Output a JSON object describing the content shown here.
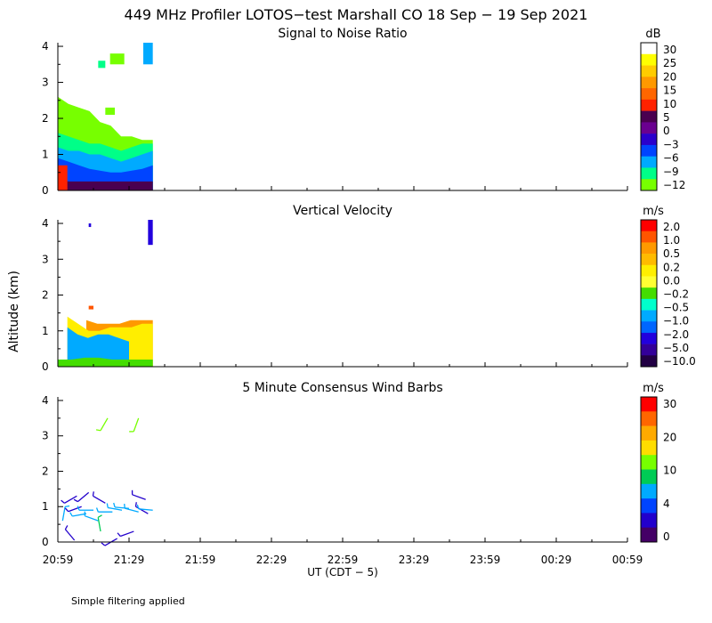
{
  "title": "449 MHz Profiler LOTOS−test Marshall CO 18 Sep − 19 Sep 2021",
  "footnote": "Simple filtering applied",
  "chart_data": [
    {
      "type": "heatmap",
      "title": "Signal to Noise Ratio",
      "ylabel": "Altitude (km)",
      "ylim": [
        0,
        4.1
      ],
      "yticks": [
        "0",
        "1",
        "2",
        "3",
        "4"
      ],
      "colorbar": {
        "unit": "dB",
        "labels": [
          "30",
          "25",
          "20",
          "15",
          "10",
          "5",
          "0",
          "−3",
          "−6",
          "−9",
          "−12"
        ],
        "colors": [
          "#ffffff",
          "#ffff00",
          "#ffcc00",
          "#ff9900",
          "#ff6600",
          "#ff2200",
          "#4a0050",
          "#6a0090",
          "#2a00cc",
          "#0044ff",
          "#00aaff",
          "#00ff88",
          "#77ff00"
        ]
      },
      "layers": [
        {
          "name": "low-snr-envelope",
          "color": "#77ff00",
          "start_min": 0,
          "end_min": 40,
          "profile": [
            2.6,
            2.4,
            2.3,
            2.2,
            1.9,
            1.8,
            1.5,
            1.5,
            1.4,
            1.4
          ]
        },
        {
          "name": "mid-snr",
          "color": "#00ff88",
          "start_min": 0,
          "end_min": 40,
          "profile": [
            1.6,
            1.5,
            1.4,
            1.3,
            1.3,
            1.2,
            1.1,
            1.2,
            1.3,
            1.3
          ]
        },
        {
          "name": "cyan",
          "color": "#00aaff",
          "start_min": 0,
          "end_min": 40,
          "profile": [
            1.2,
            1.1,
            1.1,
            1.0,
            1.0,
            0.9,
            0.8,
            0.9,
            1.0,
            1.1
          ]
        },
        {
          "name": "blue",
          "color": "#0044ff",
          "start_min": 0,
          "end_min": 40,
          "profile": [
            0.9,
            0.8,
            0.7,
            0.6,
            0.55,
            0.5,
            0.5,
            0.55,
            0.6,
            0.7
          ]
        },
        {
          "name": "purple",
          "color": "#4a0050",
          "start_min": 0,
          "end_min": 40,
          "profile": [
            0.3,
            0.25,
            0.25,
            0.25,
            0.25,
            0.25,
            0.25,
            0.25,
            0.25,
            0.25
          ]
        },
        {
          "name": "red-surface",
          "color": "#ff2200",
          "start_min": 0,
          "end_min": 4,
          "profile": [
            0.7,
            0.7
          ]
        }
      ],
      "top_patches": [
        {
          "color": "#00ff88",
          "start_min": 17,
          "end_min": 20,
          "bottom": 3.4,
          "top": 3.6
        },
        {
          "color": "#77ff00",
          "start_min": 22,
          "end_min": 28,
          "bottom": 3.5,
          "top": 3.8
        },
        {
          "color": "#00aaff",
          "start_min": 36,
          "end_min": 40,
          "bottom": 3.5,
          "top": 4.1
        },
        {
          "color": "#77ff00",
          "start_min": 20,
          "end_min": 24,
          "bottom": 2.1,
          "top": 2.3
        }
      ]
    },
    {
      "type": "heatmap",
      "title": "Vertical Velocity",
      "ylabel": "Altitude (km)",
      "ylim": [
        0,
        4.1
      ],
      "yticks": [
        "0",
        "1",
        "2",
        "3",
        "4"
      ],
      "colorbar": {
        "unit": "m/s",
        "labels": [
          "2.0",
          "1.0",
          "0.5",
          "0.2",
          "0.0",
          "−0.2",
          "−0.5",
          "−1.0",
          "−2.0",
          "−5.0",
          "−10.0"
        ],
        "colors": [
          "#ff0000",
          "#ff5500",
          "#ff9900",
          "#ffbb00",
          "#ffee00",
          "#ffff33",
          "#44dd00",
          "#00ffcc",
          "#00aaff",
          "#0066ff",
          "#2200dd",
          "#330099",
          "#220044"
        ]
      },
      "layers": [
        {
          "name": "positive",
          "color": "#ff9900",
          "start_min": 12,
          "end_min": 40,
          "profile": [
            1.3,
            1.2,
            1.2,
            1.2,
            1.3,
            1.3,
            1.3
          ]
        },
        {
          "name": "mixed",
          "color": "#ffee00",
          "start_min": 4,
          "end_min": 40,
          "profile": [
            1.4,
            1.2,
            1.0,
            1.0,
            1.1,
            1.1,
            1.1,
            1.2,
            1.2
          ]
        },
        {
          "name": "negative",
          "color": "#00aaff",
          "start_min": 4,
          "end_min": 30,
          "profile": [
            1.1,
            0.9,
            0.8,
            0.9,
            0.9,
            0.8,
            0.7
          ]
        },
        {
          "name": "near-surface",
          "color": "#44dd00",
          "start_min": 0,
          "end_min": 40,
          "profile": [
            0.2,
            0.2,
            0.25,
            0.25,
            0.2,
            0.2,
            0.2,
            0.2
          ]
        }
      ],
      "top_patches": [
        {
          "color": "#2200dd",
          "start_min": 38,
          "end_min": 40,
          "bottom": 3.4,
          "top": 4.1
        },
        {
          "color": "#2200dd",
          "start_min": 13,
          "end_min": 14,
          "bottom": 3.9,
          "top": 4.0
        },
        {
          "color": "#ff5500",
          "start_min": 13,
          "end_min": 15,
          "bottom": 1.6,
          "top": 1.7
        }
      ]
    },
    {
      "type": "wind_barbs",
      "title": "5 Minute Consensus Wind Barbs",
      "ylabel": "Altitude (km)",
      "ylim": [
        0,
        4.1
      ],
      "yticks": [
        "0",
        "1",
        "2",
        "3",
        "4"
      ],
      "colorbar": {
        "unit": "m/s",
        "labels": [
          "30",
          "20",
          "10",
          "4",
          "0"
        ],
        "colors": [
          "#ff0000",
          "#ff6600",
          "#ffaa00",
          "#ffdd00",
          "#77ff00",
          "#00cc55",
          "#00aaff",
          "#0044ff",
          "#2200cc",
          "#440066"
        ]
      },
      "barbs": [
        {
          "t_min": 2,
          "alt_km": 0.6,
          "dir": 10,
          "color": "#00aaff"
        },
        {
          "t_min": 7,
          "alt_km": 0.05,
          "dir": 320,
          "color": "#2200cc"
        },
        {
          "t_min": 8,
          "alt_km": 1.3,
          "dir": 240,
          "color": "#2200cc"
        },
        {
          "t_min": 10,
          "alt_km": 1.0,
          "dir": 250,
          "color": "#2200cc"
        },
        {
          "t_min": 12,
          "alt_km": 0.8,
          "dir": 260,
          "color": "#00aaff"
        },
        {
          "t_min": 13,
          "alt_km": 1.4,
          "dir": 230,
          "color": "#2200cc"
        },
        {
          "t_min": 15,
          "alt_km": 0.9,
          "dir": 270,
          "color": "#00aaff"
        },
        {
          "t_min": 17,
          "alt_km": 0.6,
          "dir": 290,
          "color": "#00aaff"
        },
        {
          "t_min": 18,
          "alt_km": 0.3,
          "dir": 350,
          "color": "#00cc55"
        },
        {
          "t_min": 20,
          "alt_km": 1.1,
          "dir": 300,
          "color": "#2200cc"
        },
        {
          "t_min": 21,
          "alt_km": 3.5,
          "dir": 210,
          "color": "#77ff00"
        },
        {
          "t_min": 23,
          "alt_km": 0.85,
          "dir": 270,
          "color": "#00aaff"
        },
        {
          "t_min": 25,
          "alt_km": 0.1,
          "dir": 240,
          "color": "#2200cc"
        },
        {
          "t_min": 27,
          "alt_km": 0.9,
          "dir": 280,
          "color": "#00aaff"
        },
        {
          "t_min": 30,
          "alt_km": 0.95,
          "dir": 275,
          "color": "#00aaff"
        },
        {
          "t_min": 32,
          "alt_km": 0.3,
          "dir": 250,
          "color": "#2200cc"
        },
        {
          "t_min": 34,
          "alt_km": 3.5,
          "dir": 200,
          "color": "#77ff00"
        },
        {
          "t_min": 34,
          "alt_km": 0.85,
          "dir": 285,
          "color": "#00aaff"
        },
        {
          "t_min": 37,
          "alt_km": 1.2,
          "dir": 290,
          "color": "#2200cc"
        },
        {
          "t_min": 38,
          "alt_km": 0.8,
          "dir": 300,
          "color": "#2200cc"
        },
        {
          "t_min": 40,
          "alt_km": 0.9,
          "dir": 275,
          "color": "#00aaff"
        }
      ]
    }
  ],
  "x_axis": {
    "label": "UT  (CDT − 5)",
    "tick_labels": [
      "20:59",
      "21:29",
      "21:59",
      "22:29",
      "22:59",
      "23:29",
      "23:59",
      "00:29",
      "00:59"
    ],
    "range_min": [
      0,
      240
    ]
  }
}
